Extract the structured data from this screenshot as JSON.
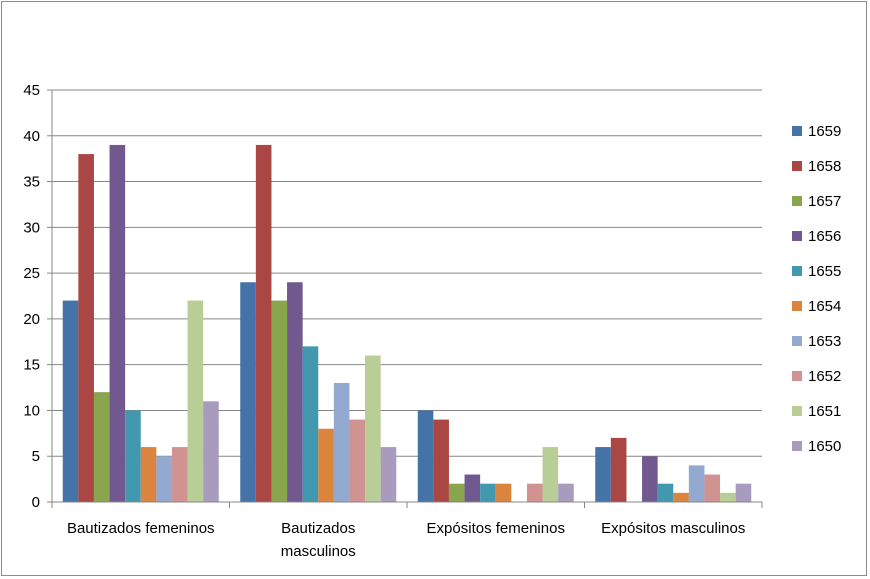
{
  "chart_data": {
    "type": "bar",
    "title": "",
    "xlabel": "",
    "ylabel": "",
    "ylim": [
      0,
      45
    ],
    "yticks": [
      0,
      5,
      10,
      15,
      20,
      25,
      30,
      35,
      40,
      45
    ],
    "grid": true,
    "legend_position": "right",
    "categories": [
      [
        "Bautizados femeninos"
      ],
      [
        "Bautizados",
        "masculinos"
      ],
      [
        "Expósitos femeninos"
      ],
      [
        "Expósitos masculinos"
      ]
    ],
    "series": [
      {
        "name": "1659",
        "color": "#4572A7",
        "values": [
          22,
          24,
          10,
          6
        ]
      },
      {
        "name": "1658",
        "color": "#AA4643",
        "values": [
          38,
          39,
          9,
          7
        ]
      },
      {
        "name": "1657",
        "color": "#89A54E",
        "values": [
          12,
          22,
          2,
          0
        ]
      },
      {
        "name": "1656",
        "color": "#71588F",
        "values": [
          39,
          24,
          3,
          5
        ]
      },
      {
        "name": "1655",
        "color": "#4198AF",
        "values": [
          10,
          17,
          2,
          2
        ]
      },
      {
        "name": "1654",
        "color": "#DB843D",
        "values": [
          6,
          8,
          2,
          1
        ]
      },
      {
        "name": "1653",
        "color": "#93A9CF",
        "values": [
          5,
          13,
          0,
          4
        ]
      },
      {
        "name": "1652",
        "color": "#D19392",
        "values": [
          6,
          9,
          2,
          3
        ]
      },
      {
        "name": "1651",
        "color": "#B9CD96",
        "values": [
          22,
          16,
          6,
          1
        ]
      },
      {
        "name": "1650",
        "color": "#A99BBD",
        "values": [
          11,
          6,
          2,
          2
        ]
      }
    ]
  }
}
